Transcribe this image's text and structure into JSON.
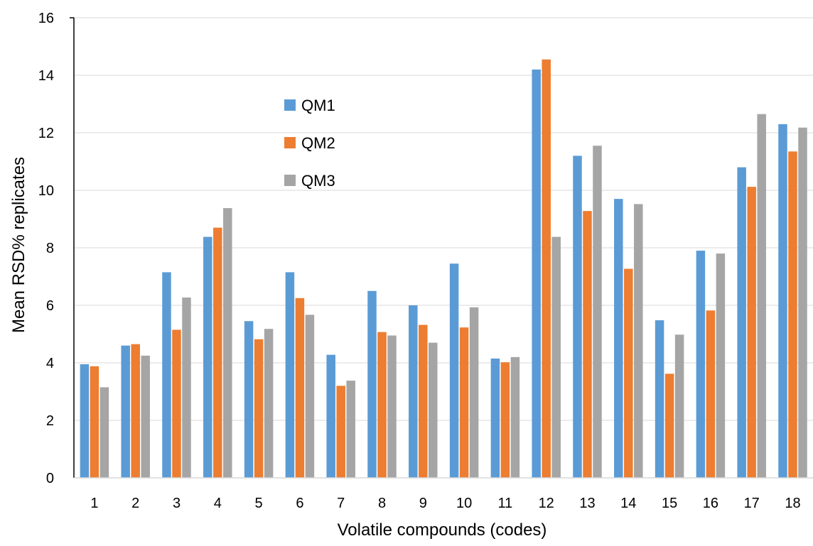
{
  "chart_data": {
    "type": "bar",
    "title": "",
    "xlabel": "Volatile compounds (codes)",
    "ylabel": "Mean RSD% replicates",
    "ylim": [
      0,
      16
    ],
    "yticks": [
      "0",
      "2",
      "4",
      "6",
      "8",
      "10",
      "12",
      "14",
      "16"
    ],
    "grid": true,
    "legend_position": "upper-left-inside",
    "categories": [
      "1",
      "2",
      "3",
      "4",
      "5",
      "6",
      "7",
      "8",
      "9",
      "10",
      "11",
      "12",
      "13",
      "14",
      "15",
      "16",
      "17",
      "18"
    ],
    "series": [
      {
        "name": "QM1",
        "color": "#5B9BD5",
        "values": [
          3.95,
          4.6,
          7.15,
          8.38,
          5.45,
          7.15,
          4.28,
          6.5,
          6.0,
          7.45,
          4.15,
          14.2,
          11.2,
          9.7,
          5.48,
          7.9,
          10.8,
          12.3
        ]
      },
      {
        "name": "QM2",
        "color": "#ED7D31",
        "values": [
          3.88,
          4.65,
          5.15,
          8.7,
          4.82,
          6.25,
          3.2,
          5.07,
          5.32,
          5.23,
          4.02,
          14.55,
          9.28,
          7.27,
          3.62,
          5.82,
          10.12,
          11.35
        ]
      },
      {
        "name": "QM3",
        "color": "#A5A5A5",
        "values": [
          3.15,
          4.25,
          6.27,
          9.38,
          5.18,
          5.67,
          3.38,
          4.95,
          4.7,
          5.93,
          4.2,
          8.38,
          11.55,
          9.52,
          4.98,
          7.8,
          12.65,
          12.18
        ]
      }
    ]
  }
}
